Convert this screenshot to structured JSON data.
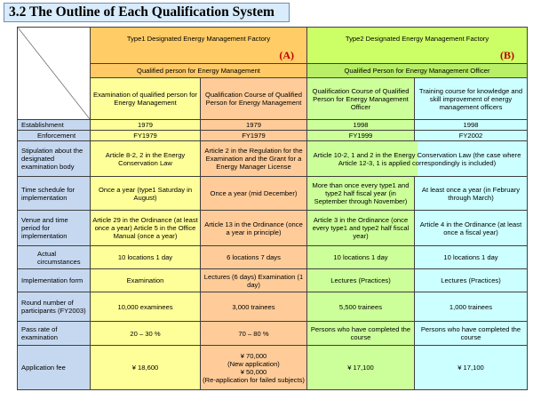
{
  "title": "3.2 The Outline of Each Qualification System",
  "type1": {
    "title": "Type1 Designated Energy Management Factory",
    "mark": "(A)",
    "qualified": "Qualified person for Energy Management"
  },
  "type2": {
    "title": "Type2 Designated Energy Management Factory",
    "mark": "(B)",
    "qualified": "Qualified Person for Energy Management Officer"
  },
  "columns": [
    "Examination of qualified person for Energy Management",
    "Qualification Course of Qualified Person for Energy Management",
    "Qualification Course of Qualified Person for Energy Management Officer",
    "Training course for knowledge and skill improvement of energy management officers"
  ],
  "rows": {
    "establishment": {
      "label": "Establishment",
      "c1": "1979",
      "c2": "1979",
      "c3": "1998",
      "c4": "1998"
    },
    "enforcement": {
      "label": "Enforcement",
      "c1": "FY1979",
      "c2": "FY1979",
      "c3": "FY1999",
      "c4": "FY2002"
    },
    "stipulation": {
      "label": "Stipulation about the designated examination body",
      "c1": "Article 8-2, 2 in the Energy Conservation Law",
      "c2": "Article 2 in the Regulation for the Examination and the Grant for a Energy Manager License",
      "c34": "Article 10-2, 1 and 2 in the Energy Conservation Law (the case where Article 12-3, 1 is applied correspondingly is included)"
    },
    "schedule": {
      "label": "Time schedule for implementation",
      "c1": "Once a year (type1 Saturday in August)",
      "c2": "Once a year (mid December)",
      "c3": "More than once every type1 and type2 half fiscal year (in September through November)",
      "c4": "At least once a year (in February through March)"
    },
    "venue": {
      "label": "Venue and time period for implementation",
      "c1": "Article 29 in the Ordinance (at least once a year) Article 5 in the Office Manual (once a year)",
      "c2": "Article 13 in the Ordinance (once a year in principle)",
      "c3": "Article 3 in the Ordinance (once every type1 and type2 half fiscal year)",
      "c4": "Article 4 in the Ordinance (at least once a fiscal year)"
    },
    "actual": {
      "label": "Actual circumstances",
      "c1": "10 locations 1 day",
      "c2": "6 locations 7 days",
      "c3": "10 locations 1 day",
      "c4": "10 locations 1 day"
    },
    "form": {
      "label": "Implementation form",
      "c1": "Examination",
      "c2": "Lectures (6 days) Examination (1 day)",
      "c3": "Lectures (Practices)",
      "c4": "Lectures (Practices)"
    },
    "participants": {
      "label": "Round number of participants (FY2003)",
      "c1": "10,000 examinees",
      "c2": "3,000 trainees",
      "c3": "5,500 trainees",
      "c4": "1,000 trainees"
    },
    "pass": {
      "label": "Pass rate of examination",
      "c1": "20 – 30 %",
      "c2": "70 – 80 %",
      "c3": "Persons who have completed the course",
      "c4": "Persons who have completed the course"
    },
    "fee": {
      "label": "Application fee",
      "c1": "¥ 18,600",
      "c2a": "¥ 70,000",
      "c2b": "(New application)",
      "c2c": "¥ 50,000",
      "c2d": "(Re-application for failed subjects)",
      "c3": "¥ 17,100",
      "c4": "¥ 17,100"
    }
  }
}
